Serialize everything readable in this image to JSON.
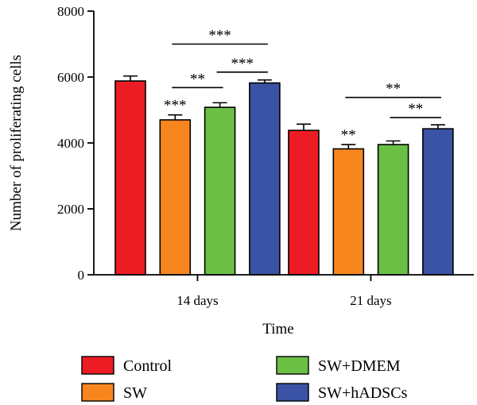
{
  "chart_data": {
    "type": "bar",
    "categories": [
      "14 days",
      "21 days"
    ],
    "series": [
      {
        "name": "Control",
        "color": "#ED1C24",
        "values": [
          5880,
          4380
        ],
        "errors": [
          150,
          190
        ]
      },
      {
        "name": "SW",
        "color": "#F7861F",
        "values": [
          4700,
          3820
        ],
        "errors": [
          150,
          130
        ]
      },
      {
        "name": "SW+DMEM",
        "color": "#6BBF45",
        "values": [
          5080,
          3950
        ],
        "errors": [
          140,
          110
        ]
      },
      {
        "name": "SW+hADSCs",
        "color": "#3A53A4",
        "values": [
          5820,
          4430
        ],
        "errors": [
          90,
          120
        ]
      }
    ],
    "xlabel": "Time",
    "ylabel": "Number of proliferating cells",
    "ylim": [
      0,
      8000
    ],
    "yticks": [
      0,
      2000,
      4000,
      6000,
      8000
    ],
    "legend_position": "bottom",
    "star_annotations": [
      {
        "group": 0,
        "bar": 1,
        "text": "***"
      },
      {
        "group": 1,
        "bar": 1,
        "text": "**"
      }
    ],
    "brackets": [
      {
        "group": 0,
        "from": 1,
        "to": 3,
        "level": 7000,
        "text": "***"
      },
      {
        "group": 0,
        "from": 2,
        "to": 3,
        "level": 6150,
        "text": "***"
      },
      {
        "group": 0,
        "from": 1,
        "to": 2,
        "level": 5680,
        "text": "**"
      },
      {
        "group": 1,
        "from": 1,
        "to": 3,
        "level": 5380,
        "text": "**"
      },
      {
        "group": 1,
        "from": 2,
        "to": 3,
        "level": 4770,
        "text": "**"
      }
    ]
  }
}
